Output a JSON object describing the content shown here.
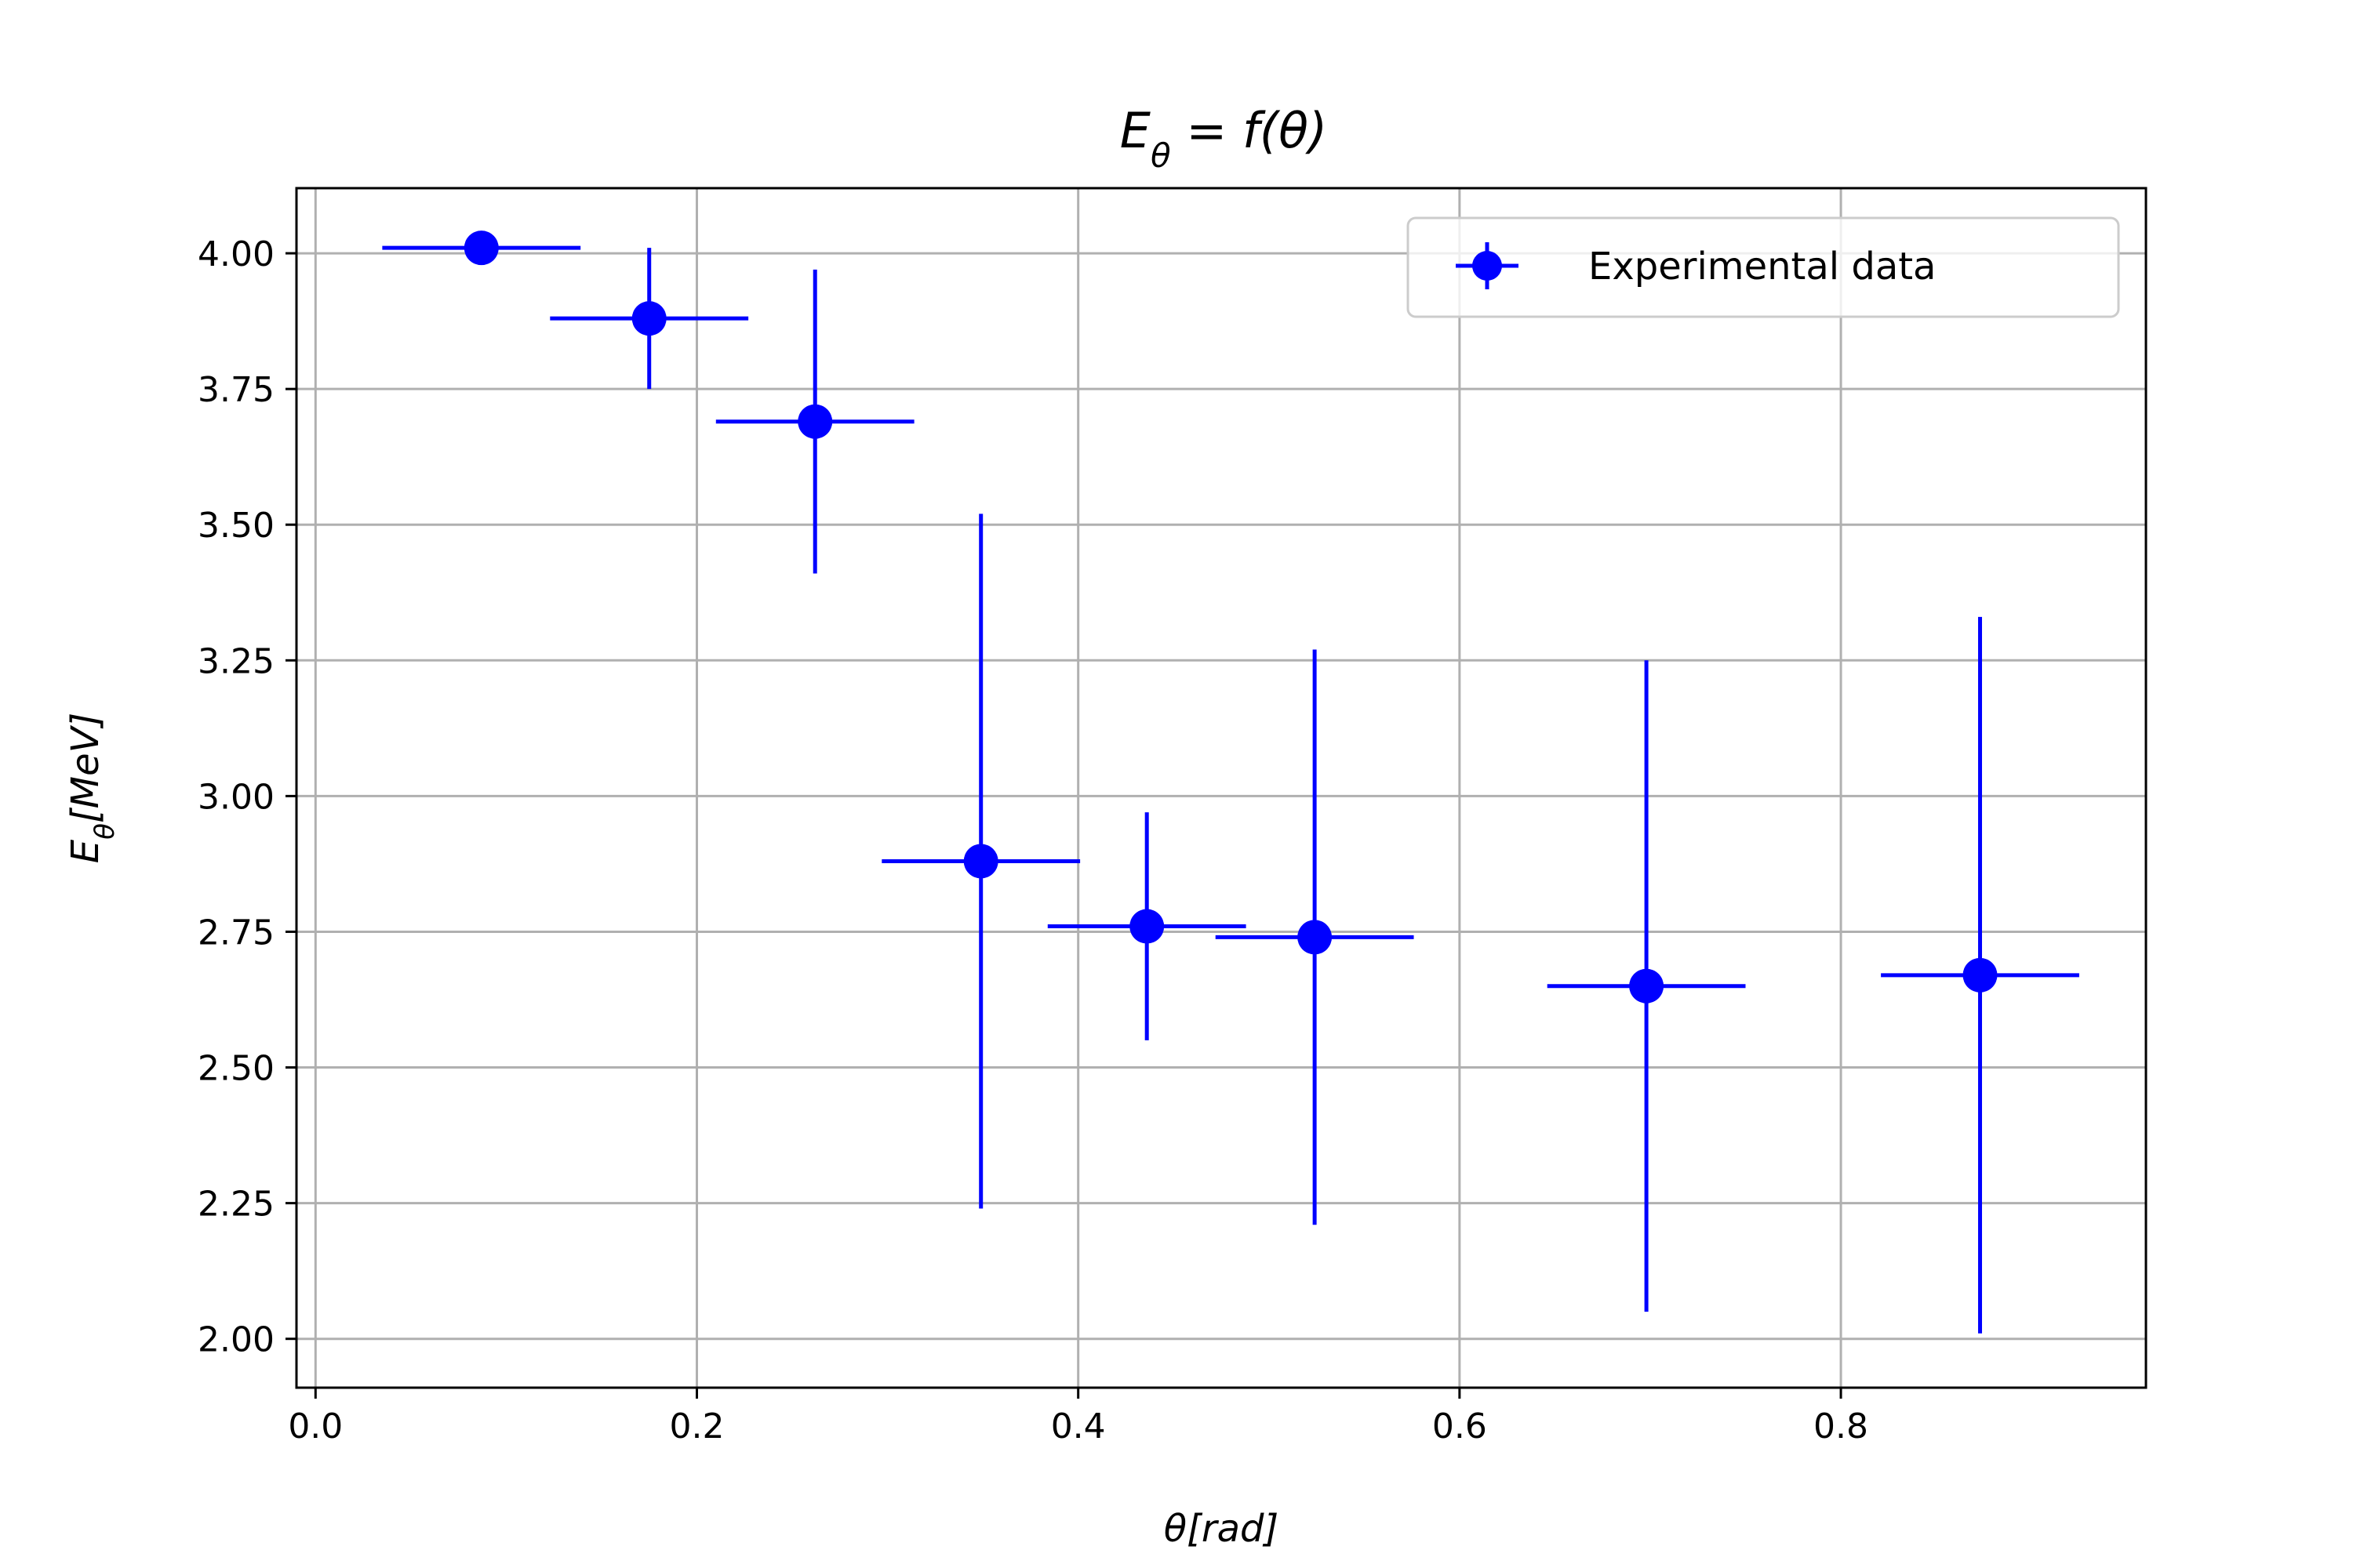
{
  "chart_data": {
    "type": "scatter",
    "title_parts": {
      "main": "E",
      "sub": "θ",
      "rest": " = f(θ)"
    },
    "xlabel": "θ[rad]",
    "ylabel_parts": {
      "main": "E",
      "sub": "θ",
      "rest": "[MeV]"
    },
    "xlim": [
      -0.01,
      0.96
    ],
    "ylim": [
      1.91,
      4.12
    ],
    "xticks": [
      0.0,
      0.2,
      0.4,
      0.6,
      0.8
    ],
    "xtick_labels": [
      "0.0",
      "0.2",
      "0.4",
      "0.6",
      "0.8"
    ],
    "yticks": [
      2.0,
      2.25,
      2.5,
      2.75,
      3.0,
      3.25,
      3.5,
      3.75,
      4.0
    ],
    "ytick_labels": [
      "2.00",
      "2.25",
      "2.50",
      "2.75",
      "3.00",
      "3.25",
      "3.50",
      "3.75",
      "4.00"
    ],
    "grid": true,
    "legend_position": "top-right",
    "series": [
      {
        "name": "Experimental data",
        "color": "#0000ff",
        "x": [
          0.087,
          0.175,
          0.262,
          0.349,
          0.436,
          0.524,
          0.698,
          0.873
        ],
        "y": [
          4.01,
          3.88,
          3.69,
          2.88,
          2.76,
          2.74,
          2.65,
          2.67
        ],
        "xerr": [
          0.052,
          0.052,
          0.052,
          0.052,
          0.052,
          0.052,
          0.052,
          0.052
        ],
        "yerr": [
          0.0,
          0.13,
          0.28,
          0.64,
          0.21,
          0.53,
          0.6,
          0.66
        ]
      }
    ]
  }
}
